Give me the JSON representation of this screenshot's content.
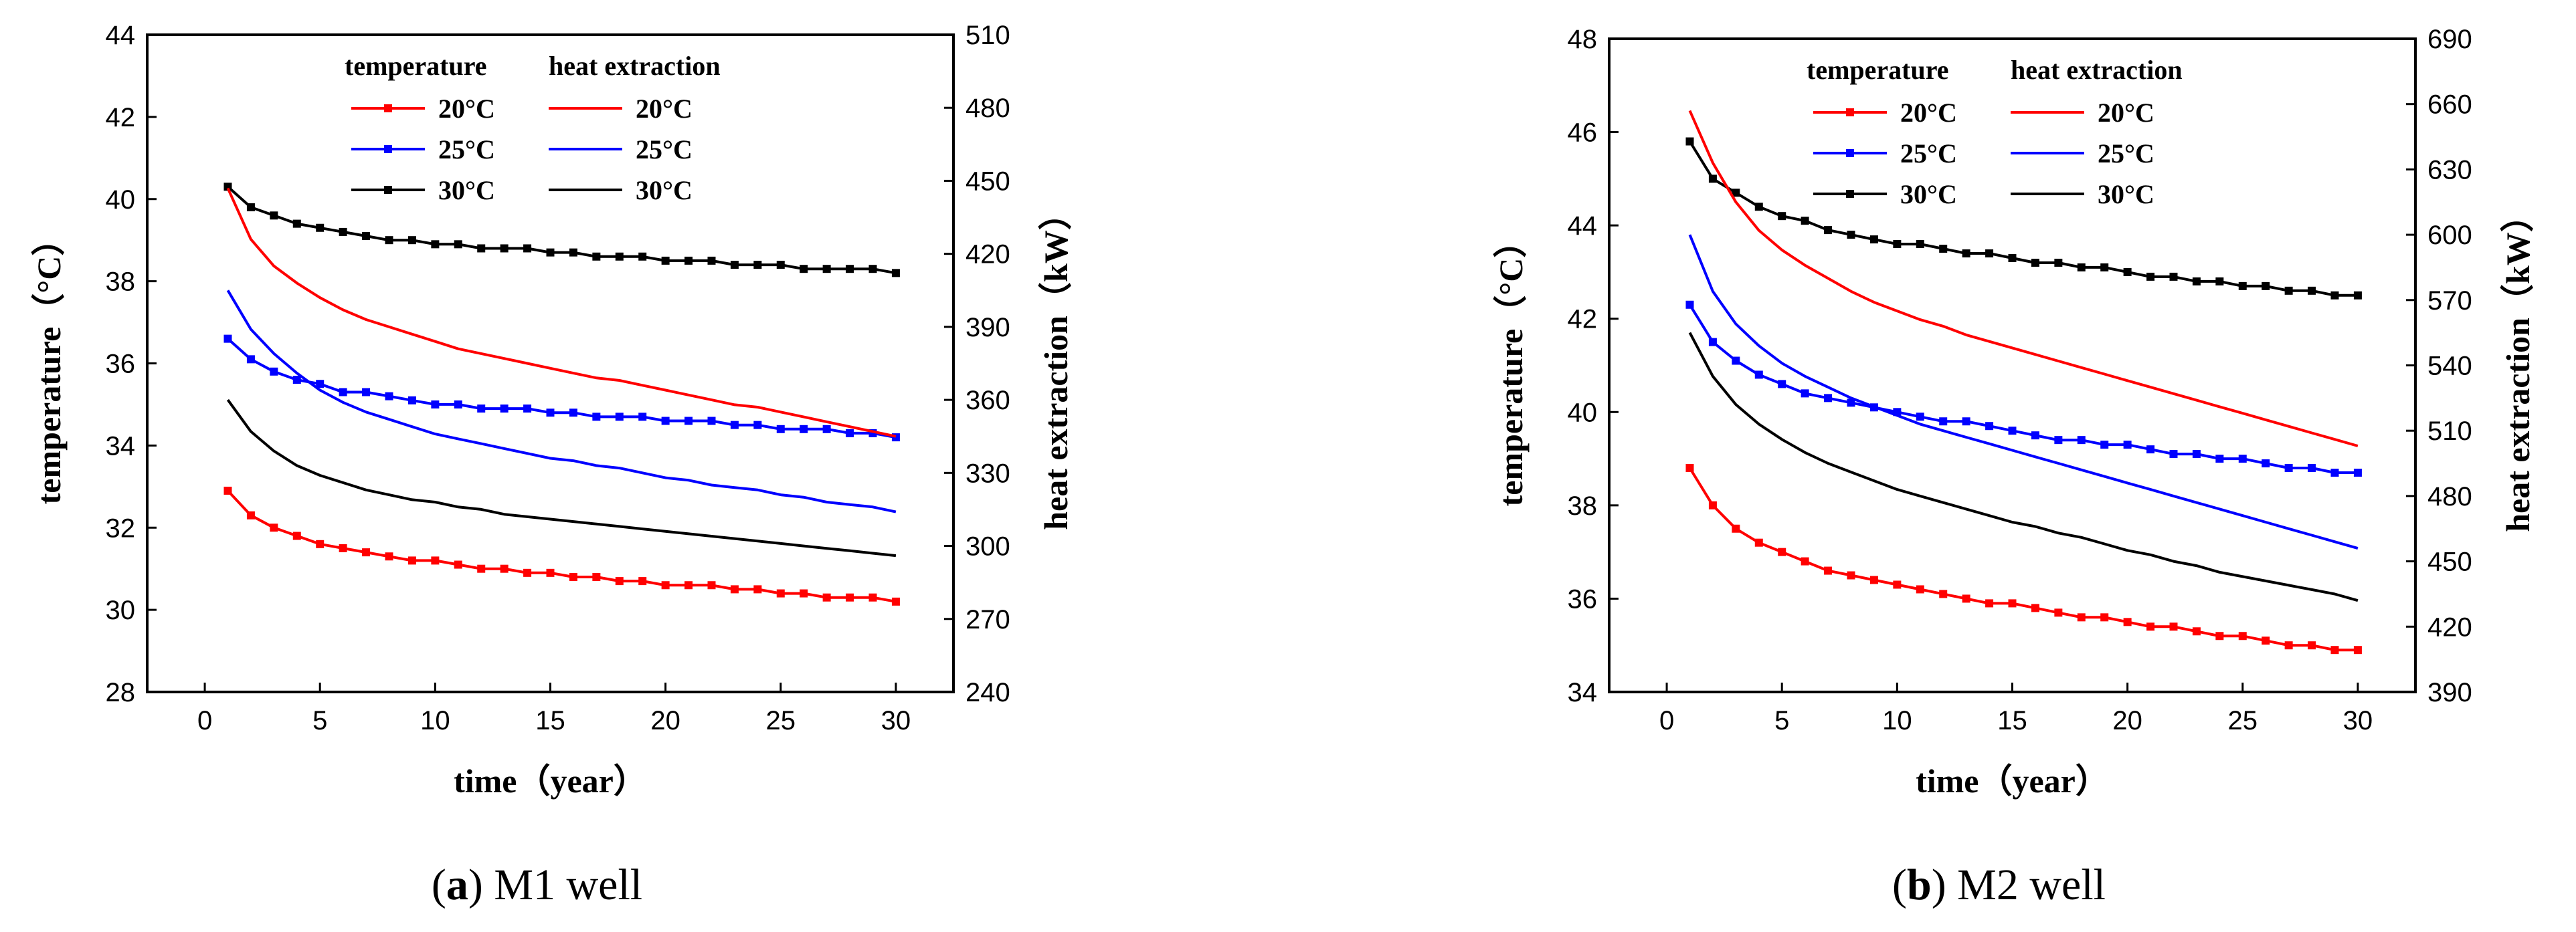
{
  "chart_data": [
    {
      "type": "line",
      "panel": "a",
      "caption_letter": "a",
      "caption_text": "M1 well",
      "xlabel": "time（year）",
      "ylabel": "temperature（°C）",
      "y2label": "heat extraction（kW）",
      "xlim": [
        -2.5,
        32.5
      ],
      "ylim": [
        28,
        44
      ],
      "y2lim": [
        240,
        510
      ],
      "xticks": [
        0,
        5,
        10,
        15,
        20,
        25,
        30
      ],
      "yticks": [
        28,
        30,
        32,
        34,
        36,
        38,
        40,
        42,
        44
      ],
      "y2ticks": [
        240,
        270,
        300,
        330,
        360,
        390,
        420,
        450,
        480,
        510
      ],
      "legend": {
        "header_left": "temperature",
        "header_right": "heat extraction",
        "entries_left": [
          "20°C",
          "25°C",
          "30°C"
        ],
        "entries_right": [
          "20°C",
          "25°C",
          "30°C"
        ]
      },
      "x": [
        1,
        2,
        3,
        4,
        5,
        6,
        7,
        8,
        9,
        10,
        11,
        12,
        13,
        14,
        15,
        16,
        17,
        18,
        19,
        20,
        21,
        22,
        23,
        24,
        25,
        26,
        27,
        28,
        29,
        30
      ],
      "series": [
        {
          "name": "temperature 20°C",
          "axis": "left",
          "color": "#ff0000",
          "markers": true,
          "values": [
            32.9,
            32.3,
            32.0,
            31.8,
            31.6,
            31.5,
            31.4,
            31.3,
            31.2,
            31.2,
            31.1,
            31.0,
            31.0,
            30.9,
            30.9,
            30.8,
            30.8,
            30.7,
            30.7,
            30.6,
            30.6,
            30.6,
            30.5,
            30.5,
            30.4,
            30.4,
            30.3,
            30.3,
            30.3,
            30.2
          ]
        },
        {
          "name": "temperature 25°C",
          "axis": "left",
          "color": "#0000ff",
          "markers": true,
          "values": [
            36.6,
            36.1,
            35.8,
            35.6,
            35.5,
            35.3,
            35.3,
            35.2,
            35.1,
            35.0,
            35.0,
            34.9,
            34.9,
            34.9,
            34.8,
            34.8,
            34.7,
            34.7,
            34.7,
            34.6,
            34.6,
            34.6,
            34.5,
            34.5,
            34.4,
            34.4,
            34.4,
            34.3,
            34.3,
            34.2
          ]
        },
        {
          "name": "temperature 30°C",
          "axis": "left",
          "color": "#000000",
          "markers": true,
          "values": [
            40.3,
            39.8,
            39.6,
            39.4,
            39.3,
            39.2,
            39.1,
            39.0,
            39.0,
            38.9,
            38.9,
            38.8,
            38.8,
            38.8,
            38.7,
            38.7,
            38.6,
            38.6,
            38.6,
            38.5,
            38.5,
            38.5,
            38.4,
            38.4,
            38.4,
            38.3,
            38.3,
            38.3,
            38.3,
            38.2
          ]
        },
        {
          "name": "heat extraction 20°C",
          "axis": "right",
          "color": "#ff0000",
          "markers": false,
          "values": [
            447,
            426,
            415,
            408,
            402,
            397,
            393,
            390,
            387,
            384,
            381,
            379,
            377,
            375,
            373,
            371,
            369,
            368,
            366,
            364,
            362,
            360,
            358,
            357,
            355,
            353,
            351,
            349,
            347,
            345
          ]
        },
        {
          "name": "heat extraction 25°C",
          "axis": "right",
          "color": "#0000ff",
          "markers": false,
          "values": [
            405,
            389,
            379,
            371,
            364,
            359,
            355,
            352,
            349,
            346,
            344,
            342,
            340,
            338,
            336,
            335,
            333,
            332,
            330,
            328,
            327,
            325,
            324,
            323,
            321,
            320,
            318,
            317,
            316,
            314
          ]
        },
        {
          "name": "heat extraction 30°C",
          "axis": "right",
          "color": "#000000",
          "markers": false,
          "values": [
            360,
            347,
            339,
            333,
            329,
            326,
            323,
            321,
            319,
            318,
            316,
            315,
            313,
            312,
            311,
            310,
            309,
            308,
            307,
            306,
            305,
            304,
            303,
            302,
            301,
            300,
            299,
            298,
            297,
            296
          ]
        }
      ]
    },
    {
      "type": "line",
      "panel": "b",
      "caption_letter": "b",
      "caption_text": "M2 well",
      "xlabel": "time（year）",
      "ylabel": "temperature（°C）",
      "y2label": "heat extraction（kW）",
      "xlim": [
        -2.5,
        32.5
      ],
      "ylim": [
        34,
        48
      ],
      "y2lim": [
        390,
        690
      ],
      "xticks": [
        0,
        5,
        10,
        15,
        20,
        25,
        30
      ],
      "yticks": [
        34,
        36,
        38,
        40,
        42,
        44,
        46,
        48
      ],
      "y2ticks": [
        390,
        420,
        450,
        480,
        510,
        540,
        570,
        600,
        630,
        660,
        690
      ],
      "legend": {
        "header_left": "temperature",
        "header_right": "heat extraction",
        "entries_left": [
          "20°C",
          "25°C",
          "30°C"
        ],
        "entries_right": [
          "20°C",
          "25°C",
          "30°C"
        ]
      },
      "x": [
        1,
        2,
        3,
        4,
        5,
        6,
        7,
        8,
        9,
        10,
        11,
        12,
        13,
        14,
        15,
        16,
        17,
        18,
        19,
        20,
        21,
        22,
        23,
        24,
        25,
        26,
        27,
        28,
        29,
        30
      ],
      "series": [
        {
          "name": "temperature 20°C",
          "axis": "left",
          "color": "#ff0000",
          "markers": true,
          "values": [
            38.8,
            38.0,
            37.5,
            37.2,
            37.0,
            36.8,
            36.6,
            36.5,
            36.4,
            36.3,
            36.2,
            36.1,
            36.0,
            35.9,
            35.9,
            35.8,
            35.7,
            35.6,
            35.6,
            35.5,
            35.4,
            35.4,
            35.3,
            35.2,
            35.2,
            35.1,
            35.0,
            35.0,
            34.9,
            34.9
          ]
        },
        {
          "name": "temperature 25°C",
          "axis": "left",
          "color": "#0000ff",
          "markers": true,
          "values": [
            42.3,
            41.5,
            41.1,
            40.8,
            40.6,
            40.4,
            40.3,
            40.2,
            40.1,
            40.0,
            39.9,
            39.8,
            39.8,
            39.7,
            39.6,
            39.5,
            39.4,
            39.4,
            39.3,
            39.3,
            39.2,
            39.1,
            39.1,
            39.0,
            39.0,
            38.9,
            38.8,
            38.8,
            38.7,
            38.7
          ]
        },
        {
          "name": "temperature 30°C",
          "axis": "left",
          "color": "#000000",
          "markers": true,
          "values": [
            45.8,
            45.0,
            44.7,
            44.4,
            44.2,
            44.1,
            43.9,
            43.8,
            43.7,
            43.6,
            43.6,
            43.5,
            43.4,
            43.4,
            43.3,
            43.2,
            43.2,
            43.1,
            43.1,
            43.0,
            42.9,
            42.9,
            42.8,
            42.8,
            42.7,
            42.7,
            42.6,
            42.6,
            42.5,
            42.5
          ]
        },
        {
          "name": "heat extraction 20°C",
          "axis": "right",
          "color": "#ff0000",
          "markers": false,
          "values": [
            657,
            633,
            615,
            602,
            593,
            586,
            580,
            574,
            569,
            565,
            561,
            558,
            554,
            551,
            548,
            545,
            542,
            539,
            536,
            533,
            530,
            527,
            524,
            521,
            518,
            515,
            512,
            509,
            506,
            503
          ]
        },
        {
          "name": "heat extraction 25°C",
          "axis": "right",
          "color": "#0000ff",
          "markers": false,
          "values": [
            600,
            574,
            559,
            549,
            541,
            535,
            530,
            525,
            521,
            517,
            513,
            510,
            507,
            504,
            501,
            498,
            495,
            492,
            489,
            486,
            483,
            480,
            477,
            474,
            471,
            468,
            465,
            462,
            459,
            456
          ]
        },
        {
          "name": "heat extraction 30°C",
          "axis": "right",
          "color": "#000000",
          "markers": false,
          "values": [
            555,
            535,
            522,
            513,
            506,
            500,
            495,
            491,
            487,
            483,
            480,
            477,
            474,
            471,
            468,
            466,
            463,
            461,
            458,
            455,
            453,
            450,
            448,
            445,
            443,
            441,
            439,
            437,
            435,
            432
          ]
        }
      ]
    }
  ]
}
